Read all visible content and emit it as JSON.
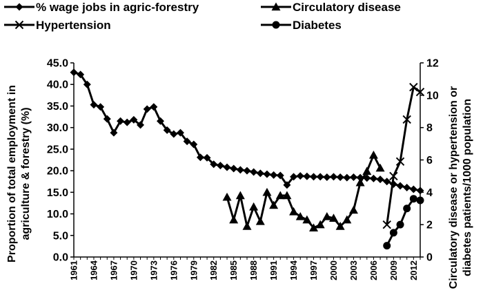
{
  "chart_data": {
    "type": "line",
    "legend": {
      "placement": "top",
      "entries": [
        {
          "label": "% wage jobs in agric-forestry",
          "marker": "diamond"
        },
        {
          "label": "Circulatory disease",
          "marker": "triangle"
        },
        {
          "label": "Hypertension",
          "marker": "x"
        },
        {
          "label": "Diabetes",
          "marker": "circle"
        }
      ]
    },
    "y_left": {
      "label_lines": [
        "Proportion of total employment in",
        "agriculture & forestry (%)"
      ],
      "ylim": [
        0,
        45
      ],
      "ticks": [
        "0.0",
        "5.0",
        "10.0",
        "15.0",
        "20.0",
        "25.0",
        "30.0",
        "35.0",
        "40.0",
        "45.0"
      ]
    },
    "y_right": {
      "label_lines": [
        "Circulatory disease or hypertension or",
        "diabetes patients/1000 population"
      ],
      "ylim": [
        0,
        12
      ],
      "ticks": [
        "0",
        "2",
        "4",
        "6",
        "8",
        "10",
        "12"
      ]
    },
    "x_axis": {
      "range": [
        1961,
        2013
      ],
      "tick_labels": [
        "1961",
        "1964",
        "1967",
        "1970",
        "1973",
        "1976",
        "1979",
        "1982",
        "1985",
        "1988",
        "1991",
        "1994",
        "1997",
        "2000",
        "2003",
        "2006",
        "2009",
        "2012"
      ]
    },
    "grid": false,
    "series": [
      {
        "name": "% wage jobs in agric-forestry",
        "axis": "left",
        "marker": "diamond",
        "x": [
          1961,
          1962,
          1963,
          1964,
          1965,
          1966,
          1967,
          1968,
          1969,
          1970,
          1971,
          1972,
          1973,
          1974,
          1975,
          1976,
          1977,
          1978,
          1979,
          1980,
          1981,
          1982,
          1983,
          1984,
          1985,
          1986,
          1987,
          1988,
          1989,
          1990,
          1991,
          1992,
          1993,
          1994,
          1995,
          1996,
          1997,
          1998,
          1999,
          2000,
          2001,
          2002,
          2003,
          2004,
          2005,
          2006,
          2007,
          2008,
          2009,
          2010,
          2011,
          2012,
          2013
        ],
        "values": [
          42.8,
          42.3,
          40.0,
          35.3,
          34.8,
          32.0,
          28.8,
          31.5,
          31.2,
          31.8,
          30.6,
          34.3,
          34.8,
          31.5,
          29.4,
          28.5,
          28.8,
          26.8,
          26.1,
          23.1,
          23.0,
          21.5,
          21.2,
          20.8,
          20.5,
          20.2,
          20.0,
          19.7,
          19.4,
          19.2,
          19.0,
          18.9,
          16.7,
          18.6,
          18.8,
          18.7,
          18.6,
          18.6,
          18.5,
          18.6,
          18.5,
          18.4,
          18.5,
          18.4,
          18.3,
          18.2,
          18.0,
          17.5,
          16.9,
          16.5,
          16.1,
          15.7,
          15.4
        ]
      },
      {
        "name": "Circulatory disease",
        "axis": "right",
        "marker": "triangle",
        "x": [
          1984,
          1985,
          1986,
          1987,
          1988,
          1989,
          1990,
          1991,
          1992,
          1993,
          1994,
          1995,
          1996,
          1997,
          1998,
          1999,
          2000,
          2001,
          2002,
          2003,
          2004,
          2005,
          2006,
          2007
        ],
        "values": [
          3.7,
          2.3,
          3.8,
          1.9,
          3.1,
          2.2,
          4.0,
          3.2,
          3.8,
          3.8,
          2.8,
          2.5,
          2.3,
          1.8,
          2.0,
          2.5,
          2.4,
          1.9,
          2.3,
          2.9,
          4.6,
          5.3,
          6.3,
          5.5
        ]
      },
      {
        "name": "Hypertension",
        "axis": "right",
        "marker": "x",
        "x": [
          2008,
          2009,
          2010,
          2011,
          2012,
          2013
        ],
        "values": [
          2.0,
          5.0,
          5.9,
          8.5,
          10.5,
          10.2
        ]
      },
      {
        "name": "Diabetes",
        "axis": "right",
        "marker": "circle",
        "x": [
          2008,
          2009,
          2010,
          2011,
          2012,
          2013
        ],
        "values": [
          0.7,
          1.5,
          2.0,
          3.0,
          3.6,
          3.5
        ]
      }
    ]
  }
}
